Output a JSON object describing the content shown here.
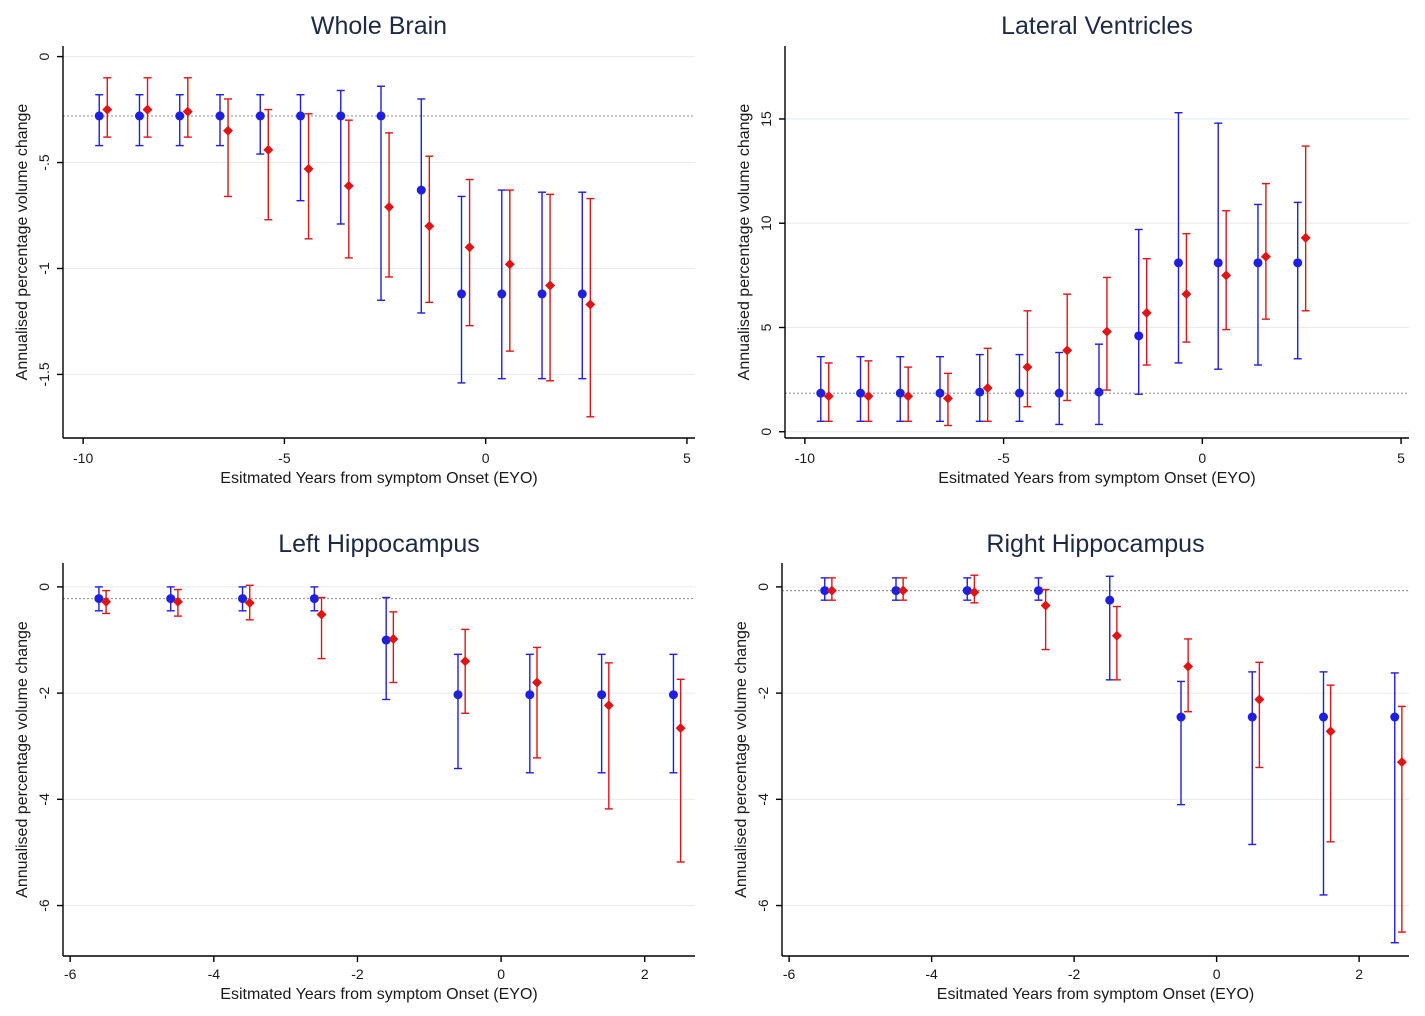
{
  "colors": {
    "series_a": "#1f1fe0",
    "series_b": "#e01414"
  },
  "chart_data": [
    {
      "type": "scatter",
      "title": "Whole Brain",
      "xlabel": "Esitmated Years from symptom Onset (EYO)",
      "ylabel": "Annualised percentage volume change",
      "xlim": [
        -10.5,
        5.2
      ],
      "ylim": [
        -1.8,
        0.05
      ],
      "xticks": [
        -10,
        -5,
        0,
        5
      ],
      "yticks": [
        0,
        -0.5,
        -1,
        -1.5
      ],
      "ytick_labels": [
        "0",
        "-.5",
        "-1",
        "-1.5"
      ],
      "ref_line": -0.28,
      "grid": true,
      "legend": "none",
      "series": [
        {
          "color": "blue",
          "marker": "circle",
          "x": [
            -9.6,
            -8.6,
            -7.6,
            -6.6,
            -5.6,
            -4.6,
            -3.6,
            -2.6,
            -1.6,
            -0.6,
            0.4,
            1.4,
            2.4
          ],
          "y": [
            -0.28,
            -0.28,
            -0.28,
            -0.28,
            -0.28,
            -0.28,
            -0.28,
            -0.28,
            -0.63,
            -1.12,
            -1.12,
            -1.12,
            -1.12
          ],
          "lower": [
            -0.42,
            -0.42,
            -0.42,
            -0.42,
            -0.46,
            -0.68,
            -0.79,
            -1.15,
            -1.21,
            -1.54,
            -1.52,
            -1.52,
            -1.52
          ],
          "upper": [
            -0.18,
            -0.18,
            -0.18,
            -0.18,
            -0.18,
            -0.18,
            -0.16,
            -0.14,
            -0.2,
            -0.66,
            -0.63,
            -0.64,
            -0.64
          ]
        },
        {
          "color": "red",
          "marker": "diamond",
          "x": [
            -9.4,
            -8.4,
            -7.4,
            -6.4,
            -5.4,
            -4.4,
            -3.4,
            -2.4,
            -1.4,
            -0.4,
            0.6,
            1.6,
            2.6
          ],
          "y": [
            -0.25,
            -0.25,
            -0.26,
            -0.35,
            -0.44,
            -0.53,
            -0.61,
            -0.71,
            -0.8,
            -0.9,
            -0.98,
            -1.08,
            -1.17
          ],
          "lower": [
            -0.38,
            -0.38,
            -0.38,
            -0.66,
            -0.77,
            -0.86,
            -0.95,
            -1.04,
            -1.16,
            -1.27,
            -1.39,
            -1.53,
            -1.7
          ],
          "upper": [
            -0.1,
            -0.1,
            -0.1,
            -0.2,
            -0.25,
            -0.27,
            -0.3,
            -0.36,
            -0.47,
            -0.58,
            -0.63,
            -0.65,
            -0.67
          ]
        }
      ]
    },
    {
      "type": "scatter",
      "title": "Lateral Ventricles",
      "xlabel": "Esitmated Years from symptom Onset (EYO)",
      "ylabel": "Annualised percentage volume change",
      "xlim": [
        -10.5,
        5.2
      ],
      "ylim": [
        -0.3,
        18.5
      ],
      "xticks": [
        -10,
        -5,
        0,
        5
      ],
      "yticks": [
        0,
        5,
        10,
        15
      ],
      "ytick_labels": [
        "0",
        "5",
        "10",
        "15"
      ],
      "ref_line": 1.85,
      "grid": true,
      "legend": "none",
      "series": [
        {
          "color": "blue",
          "marker": "circle",
          "x": [
            -9.6,
            -8.6,
            -7.6,
            -6.6,
            -5.6,
            -4.6,
            -3.6,
            -2.6,
            -1.6,
            -0.6,
            0.4,
            1.4,
            2.4
          ],
          "y": [
            1.85,
            1.85,
            1.85,
            1.85,
            1.9,
            1.85,
            1.85,
            1.9,
            4.6,
            8.1,
            8.1,
            8.1,
            8.1
          ],
          "lower": [
            0.5,
            0.5,
            0.5,
            0.5,
            0.5,
            0.5,
            0.35,
            0.35,
            1.8,
            3.3,
            3.0,
            3.2,
            3.5
          ],
          "upper": [
            3.6,
            3.6,
            3.6,
            3.6,
            3.7,
            3.7,
            3.8,
            4.2,
            9.7,
            15.3,
            14.8,
            10.9,
            11.0
          ]
        },
        {
          "color": "red",
          "marker": "diamond",
          "x": [
            -9.4,
            -8.4,
            -7.4,
            -6.4,
            -5.4,
            -4.4,
            -3.4,
            -2.4,
            -1.4,
            -0.4,
            0.6,
            1.6,
            2.6
          ],
          "y": [
            1.7,
            1.7,
            1.7,
            1.6,
            2.1,
            3.1,
            3.9,
            4.8,
            5.7,
            6.6,
            7.5,
            8.4,
            9.3
          ],
          "lower": [
            0.5,
            0.5,
            0.5,
            0.3,
            0.5,
            1.2,
            1.5,
            2.0,
            3.2,
            4.3,
            4.9,
            5.4,
            5.8
          ],
          "upper": [
            3.3,
            3.4,
            3.1,
            2.8,
            4.0,
            5.8,
            6.6,
            7.4,
            8.3,
            9.5,
            10.6,
            11.9,
            13.7
          ]
        }
      ]
    },
    {
      "type": "scatter",
      "title": "Left Hippocampus",
      "xlabel": "Esitmated Years from symptom Onset (EYO)",
      "ylabel": "Annualised percentage volume change",
      "xlim": [
        -6.1,
        2.7
      ],
      "ylim": [
        -6.95,
        0.45
      ],
      "xticks": [
        -6,
        -4,
        -2,
        0,
        2
      ],
      "yticks": [
        0,
        -2,
        -4,
        -6
      ],
      "ytick_labels": [
        "0",
        "-2",
        "-4",
        "-6"
      ],
      "ref_line": -0.22,
      "grid": true,
      "legend": "none",
      "series": [
        {
          "color": "blue",
          "marker": "circle",
          "x": [
            -5.6,
            -4.6,
            -3.6,
            -2.6,
            -1.6,
            -0.6,
            0.4,
            1.4,
            2.4
          ],
          "y": [
            -0.22,
            -0.22,
            -0.22,
            -0.22,
            -1.0,
            -2.03,
            -2.03,
            -2.03,
            -2.03
          ],
          "lower": [
            -0.45,
            -0.45,
            -0.45,
            -0.45,
            -2.12,
            -3.42,
            -3.5,
            -3.5,
            -3.5
          ],
          "upper": [
            0.0,
            0.0,
            0.0,
            0.0,
            -0.2,
            -1.27,
            -1.27,
            -1.27,
            -1.27
          ]
        },
        {
          "color": "red",
          "marker": "diamond",
          "x": [
            -5.5,
            -4.5,
            -3.5,
            -2.5,
            -1.5,
            -0.5,
            0.5,
            1.5,
            2.5
          ],
          "y": [
            -0.28,
            -0.28,
            -0.3,
            -0.52,
            -0.98,
            -1.4,
            -1.8,
            -2.23,
            -2.66
          ],
          "lower": [
            -0.5,
            -0.55,
            -0.62,
            -1.35,
            -1.8,
            -2.38,
            -3.22,
            -4.18,
            -5.18
          ],
          "upper": [
            -0.07,
            -0.05,
            0.03,
            -0.2,
            -0.47,
            -0.8,
            -1.14,
            -1.43,
            -1.74
          ]
        }
      ]
    },
    {
      "type": "scatter",
      "title": "Right Hippocampus",
      "xlabel": "Esitmated Years from symptom Onset (EYO)",
      "ylabel": "Annualised percentage volume change",
      "xlim": [
        -6.1,
        2.7
      ],
      "ylim": [
        -6.95,
        0.45
      ],
      "xticks": [
        -6,
        -4,
        -2,
        0,
        2
      ],
      "yticks": [
        0,
        -2,
        -4,
        -6
      ],
      "ytick_labels": [
        "0",
        "-2",
        "-4",
        "-6"
      ],
      "ref_line": -0.07,
      "grid": true,
      "legend": "none",
      "series": [
        {
          "color": "blue",
          "marker": "circle",
          "x": [
            -5.5,
            -4.5,
            -3.5,
            -2.5,
            -1.5,
            -0.5,
            0.5,
            1.5,
            2.5
          ],
          "y": [
            -0.07,
            -0.07,
            -0.07,
            -0.07,
            -0.25,
            -2.45,
            -2.45,
            -2.45,
            -2.45
          ],
          "lower": [
            -0.25,
            -0.25,
            -0.25,
            -0.25,
            -1.75,
            -4.1,
            -4.85,
            -5.8,
            -6.7
          ],
          "upper": [
            0.17,
            0.17,
            0.17,
            0.17,
            0.2,
            -1.78,
            -1.6,
            -1.6,
            -1.62
          ]
        },
        {
          "color": "red",
          "marker": "diamond",
          "x": [
            -5.4,
            -4.4,
            -3.4,
            -2.4,
            -1.4,
            -0.4,
            0.6,
            1.6,
            2.6
          ],
          "y": [
            -0.07,
            -0.07,
            -0.1,
            -0.35,
            -0.92,
            -1.5,
            -2.12,
            -2.72,
            -3.3
          ],
          "lower": [
            -0.25,
            -0.25,
            -0.3,
            -1.18,
            -1.75,
            -2.35,
            -3.4,
            -4.8,
            -6.5
          ],
          "upper": [
            0.17,
            0.17,
            0.22,
            -0.05,
            -0.37,
            -0.98,
            -1.42,
            -1.85,
            -2.25
          ]
        }
      ]
    }
  ]
}
